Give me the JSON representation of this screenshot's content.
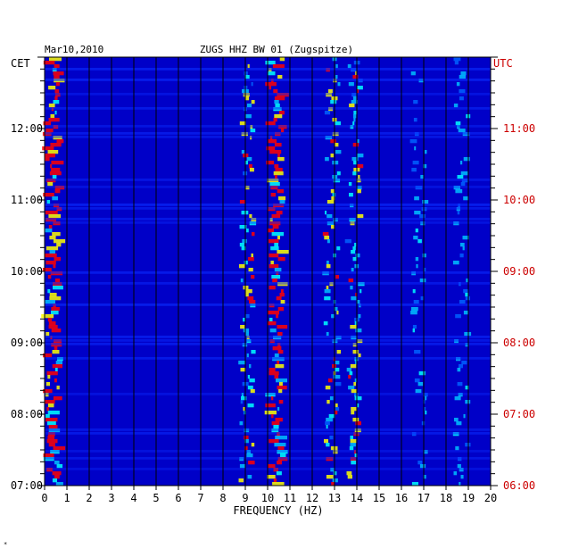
{
  "header": {
    "date": "Mar10,2010",
    "station": "ZUGS HHZ BW 01 (Zugspitze)",
    "left_tz": "CET",
    "right_tz": "UTC"
  },
  "footer_mark": "*",
  "colors": {
    "background": "#0000c8",
    "grid": "#000000",
    "utc_text": "#cc0000",
    "hot": [
      "#00ffff",
      "#ffff00",
      "#ff0000"
    ]
  },
  "chart_data": {
    "type": "heatmap",
    "xlabel": "FREQUENCY (HZ)",
    "xlim": [
      0,
      20
    ],
    "x_ticks": [
      "0",
      "1",
      "2",
      "3",
      "4",
      "5",
      "6",
      "7",
      "8",
      "9",
      "10",
      "11",
      "12",
      "13",
      "14",
      "15",
      "16",
      "17",
      "18",
      "19",
      "20"
    ],
    "cet_ticks": [
      "12:00",
      "11:00",
      "10:00",
      "09:00",
      "08:00",
      "07:00"
    ],
    "utc_ticks": [
      "11:00",
      "10:00",
      "09:00",
      "08:00",
      "07:00",
      "06:00"
    ],
    "time_range_cet": [
      "07:00",
      "13:00"
    ],
    "energy_bands_hz": [
      {
        "center": 0.4,
        "strength": "high"
      },
      {
        "center": 9.1,
        "strength": "medium"
      },
      {
        "center": 10.4,
        "strength": "high"
      },
      {
        "center": 12.9,
        "strength": "medium"
      },
      {
        "center": 13.9,
        "strength": "medium"
      },
      {
        "center": 16.8,
        "strength": "low"
      },
      {
        "center": 18.7,
        "strength": "low"
      }
    ]
  }
}
